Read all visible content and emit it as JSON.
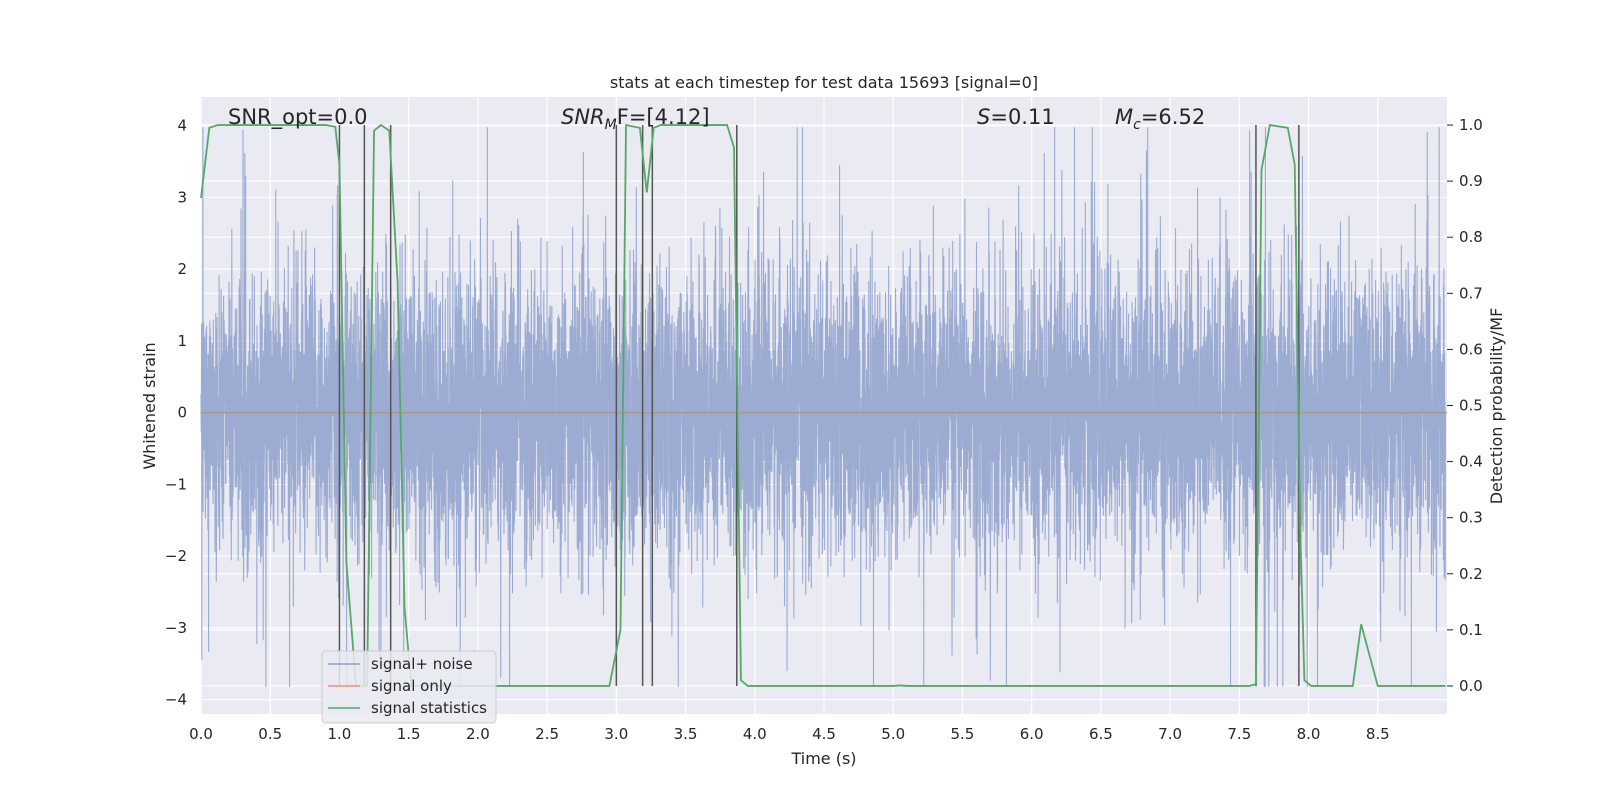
{
  "chart_data": {
    "type": "line",
    "title": "stats at each timestep for test data 15693 [signal=0]",
    "xlabel": "Time (s)",
    "ylabel_left": "Whitened strain",
    "ylabel_right": "Detection probability/MF",
    "xlim": [
      0,
      9.0
    ],
    "ylim_left": [
      -4.2,
      4.4
    ],
    "ylim_right": [
      -0.05,
      1.05
    ],
    "x_ticks": [
      0.0,
      0.5,
      1.0,
      1.5,
      2.0,
      2.5,
      3.0,
      3.5,
      4.0,
      4.5,
      5.0,
      5.5,
      6.0,
      6.5,
      7.0,
      7.5,
      8.0,
      8.5
    ],
    "x_tick_labels": [
      "0.0",
      "0.5",
      "1.0",
      "1.5",
      "2.0",
      "2.5",
      "3.0",
      "3.5",
      "4.0",
      "4.5",
      "5.0",
      "5.5",
      "6.0",
      "6.5",
      "7.0",
      "7.5",
      "8.0",
      "8.5"
    ],
    "y_left_ticks": [
      -4,
      -3,
      -2,
      -1,
      0,
      1,
      2,
      3,
      4
    ],
    "y_left_tick_labels": [
      "−4",
      "−3",
      "−2",
      "−1",
      "0",
      "1",
      "2",
      "3",
      "4"
    ],
    "y_right_ticks": [
      0.0,
      0.1,
      0.2,
      0.3,
      0.4,
      0.5,
      0.6,
      0.7,
      0.8,
      0.9,
      1.0
    ],
    "y_right_tick_labels": [
      "0.0",
      "0.1",
      "0.2",
      "0.3",
      "0.4",
      "0.5",
      "0.6",
      "0.7",
      "0.8",
      "0.9",
      "1.0"
    ],
    "grid": true,
    "legend_placement": "lower-left",
    "annotations": {
      "snr_opt": "SNR_opt=0.0",
      "snr_mf_main": "SNR",
      "snr_mf_sub": "M",
      "snr_mf_rest": "F=[4.12]",
      "s_main": "S",
      "s_rest": "=0.11",
      "mc_main": "M",
      "mc_sub": "c",
      "mc_rest": "=6.52"
    },
    "series": [
      {
        "name": "signal+ noise",
        "axis": "left",
        "color": "#8da0cb",
        "kind": "noise",
        "sample_rate": 1024,
        "duration": 8.99,
        "envelope": 2.6
      },
      {
        "name": "signal only",
        "axis": "left",
        "color": "#e8957a",
        "x": [
          0.0,
          8.99
        ],
        "y": [
          0.0,
          0.0
        ]
      },
      {
        "name": "signal statistics",
        "axis": "right",
        "color": "#55a868",
        "x": [
          0.0,
          0.06,
          0.12,
          0.5,
          0.9,
          0.97,
          1.0,
          1.05,
          1.12,
          1.2,
          1.25,
          1.3,
          1.36,
          1.42,
          1.47,
          1.52,
          1.6,
          2.0,
          2.5,
          2.95,
          3.03,
          3.07,
          3.17,
          3.22,
          3.27,
          3.32,
          3.4,
          3.8,
          3.85,
          3.9,
          3.95,
          4.0,
          4.5,
          5.0,
          5.05,
          5.1,
          6.0,
          7.0,
          7.57,
          7.62,
          7.66,
          7.72,
          7.85,
          7.9,
          7.94,
          7.97,
          8.02,
          8.06,
          8.12,
          8.2,
          8.32,
          8.38,
          8.5,
          8.99
        ],
        "y": [
          0.87,
          0.995,
          1.0,
          1.0,
          1.0,
          0.997,
          0.93,
          0.22,
          0.0,
          0.0,
          0.99,
          1.0,
          0.99,
          0.72,
          0.14,
          0.0,
          0.0,
          0.0,
          0.0,
          0.0,
          0.1,
          1.0,
          0.995,
          0.88,
          0.995,
          1.0,
          1.0,
          1.0,
          0.96,
          0.01,
          0.0,
          0.0,
          0.0,
          0.0,
          0.001,
          0.0,
          0.0,
          0.0,
          0.0,
          0.003,
          0.92,
          1.0,
          0.995,
          0.93,
          0.28,
          0.01,
          0.0,
          0.0,
          0.0,
          0.0,
          0.0,
          0.11,
          0.0,
          0.0
        ]
      }
    ],
    "vertical_lines": {
      "color": "#555555",
      "x": [
        1.0,
        1.18,
        1.37,
        3.0,
        3.19,
        3.26,
        3.87,
        7.62,
        7.93
      ],
      "y_right_range": [
        0.0,
        1.0
      ]
    }
  }
}
